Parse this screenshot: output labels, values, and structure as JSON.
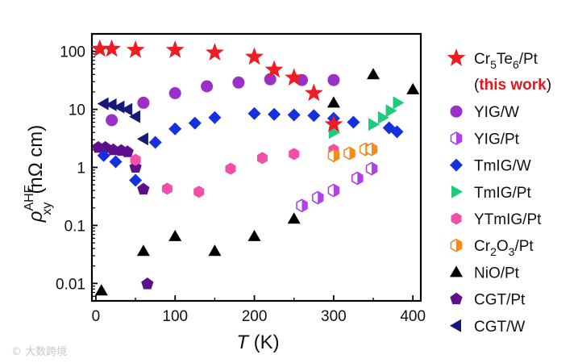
{
  "chart_data": {
    "type": "scatter",
    "title": "",
    "xlabel": {
      "italic": "T",
      "rest": " (K)"
    },
    "ylabel": {
      "rho": "ρ",
      "sup": "AHE",
      "sub": "xy",
      "units": "(nΩ cm)"
    },
    "xscale": "linear",
    "yscale": "log",
    "xlim": [
      -5,
      410
    ],
    "ylim": [
      0.005,
      200
    ],
    "xticks": [
      0,
      100,
      200,
      300,
      400
    ],
    "xtick_labels": [
      "0",
      "100",
      "200",
      "300",
      "400"
    ],
    "yticks": [
      0.01,
      0.1,
      1,
      10,
      100
    ],
    "ytick_labels": [
      "0.01",
      "0.1",
      "1",
      "10",
      "100"
    ],
    "legend_position": "outside-right",
    "series": [
      {
        "name": "Cr5Te6/Pt",
        "legend": {
          "main": "Cr",
          "sub1": "5",
          "mid": "Te",
          "sub2": "6",
          "end": "/Pt"
        },
        "note": "(this work)",
        "marker": "star",
        "color": "#ee1c24",
        "x": [
          5,
          20,
          50,
          100,
          150,
          200,
          225,
          250,
          275,
          300
        ],
        "y": [
          110,
          110,
          105,
          105,
          95,
          80,
          48,
          35,
          19,
          5.5
        ]
      },
      {
        "name": "YIG/W",
        "marker": "circle",
        "color": "#9b30c8",
        "x": [
          20,
          60,
          100,
          140,
          180,
          220,
          260,
          300
        ],
        "y": [
          6.5,
          13,
          19,
          25,
          29,
          33,
          32,
          32
        ]
      },
      {
        "name": "YIG/Pt",
        "marker": "hexagon-half",
        "color": "#b040e8",
        "x": [
          260,
          280,
          300,
          330,
          348
        ],
        "y": [
          0.22,
          0.3,
          0.4,
          0.65,
          0.95
        ]
      },
      {
        "name": "TmIG/W",
        "marker": "diamond",
        "color": "#1530dd",
        "x": [
          10,
          25,
          50,
          75,
          100,
          125,
          150,
          200,
          225,
          250,
          275,
          300,
          325,
          370,
          380
        ],
        "y": [
          1.6,
          1.25,
          0.6,
          2.7,
          4.6,
          5.8,
          7.2,
          8.5,
          8.2,
          8.0,
          7.8,
          7.0,
          6.0,
          4.8,
          4.1
        ]
      },
      {
        "name": "TmIG/Pt",
        "marker": "triangle-right",
        "color": "#1dcc7a",
        "x": [
          300,
          350,
          362,
          372,
          381
        ],
        "y": [
          4.0,
          5.5,
          7.2,
          9.5,
          13
        ]
      },
      {
        "name": "YTmIG/Pt",
        "marker": "hexagon",
        "color": "#f250a8",
        "x": [
          50,
          90,
          130,
          170,
          210,
          250,
          300
        ],
        "y": [
          1.35,
          0.43,
          0.38,
          0.95,
          1.45,
          1.7,
          2.0
        ]
      },
      {
        "name": "Cr2O3/Pt",
        "legend": {
          "main": "Cr",
          "sub1": "2",
          "mid": "O",
          "sub2": "3",
          "end": "/Pt"
        },
        "marker": "hexagon-half",
        "color": "#f58a1f",
        "x": [
          300,
          320,
          340,
          348
        ],
        "y": [
          1.6,
          1.75,
          2.05,
          2.05
        ]
      },
      {
        "name": "NiO/Pt",
        "marker": "triangle-up",
        "color": "#000000",
        "x": [
          7,
          60,
          100,
          150,
          200,
          250,
          300,
          350,
          400
        ],
        "y": [
          0.0075,
          0.036,
          0.065,
          0.036,
          0.065,
          0.13,
          13,
          40,
          22
        ]
      },
      {
        "name": "CGT/Pt",
        "marker": "pentagon",
        "color": "#5e0f8b",
        "x": [
          3,
          12,
          22,
          32,
          40,
          50,
          60,
          65
        ],
        "y": [
          2.2,
          2.2,
          2.0,
          1.95,
          1.85,
          1.0,
          0.42,
          0.0098
        ]
      },
      {
        "name": "CGT/W",
        "marker": "triangle-left",
        "color": "#16197a",
        "x": [
          10,
          20,
          30,
          40,
          50,
          60
        ],
        "y": [
          12.5,
          12,
          11,
          10,
          7.5,
          3.1
        ]
      }
    ]
  },
  "watermark": "© 大数跨境"
}
